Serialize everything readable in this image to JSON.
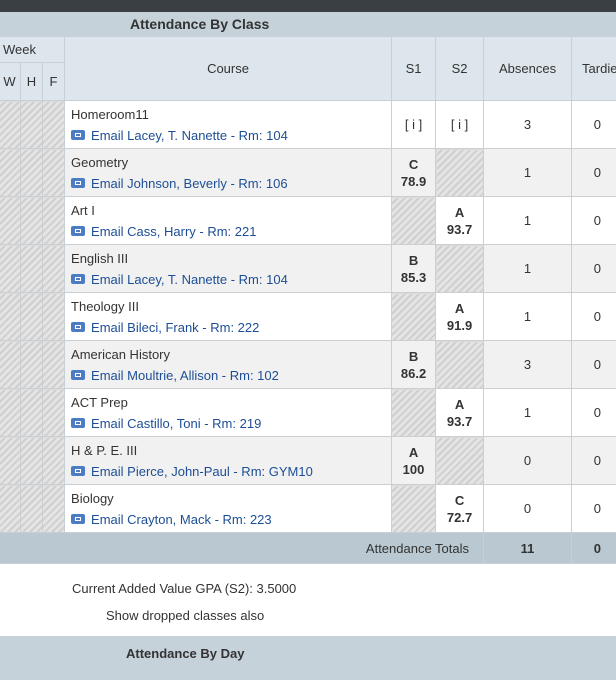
{
  "header": {
    "title": "Attendance By Class"
  },
  "table": {
    "columns": {
      "week": "Week",
      "days": [
        "W",
        "H",
        "F"
      ],
      "course": "Course",
      "s1": "S1",
      "s2": "S2",
      "absences": "Absences",
      "tardies": "Tardies"
    },
    "rows": [
      {
        "course": "Homeroom11",
        "teacher": "Email Lacey, T. Nanette - Rm: 104",
        "s1": "[ i ]",
        "s2": "[ i ]",
        "absences": 3,
        "tardies": 0
      },
      {
        "course": "Geometry",
        "teacher": "Email Johnson, Beverly - Rm: 106",
        "s1": {
          "letter": "C",
          "score": 78.9
        },
        "s2": null,
        "absences": 1,
        "tardies": 0
      },
      {
        "course": "Art I",
        "teacher": "Email Cass, Harry - Rm: 221",
        "s1": null,
        "s2": {
          "letter": "A",
          "score": 93.7
        },
        "absences": 1,
        "tardies": 0
      },
      {
        "course": "English III",
        "teacher": "Email Lacey, T. Nanette - Rm: 104",
        "s1": {
          "letter": "B",
          "score": 85.3
        },
        "s2": null,
        "absences": 1,
        "tardies": 0
      },
      {
        "course": "Theology III",
        "teacher": "Email Bileci, Frank - Rm: 222",
        "s1": null,
        "s2": {
          "letter": "A",
          "score": 91.9
        },
        "absences": 1,
        "tardies": 0
      },
      {
        "course": "American History",
        "teacher": "Email Moultrie, Allison - Rm: 102",
        "s1": {
          "letter": "B",
          "score": 86.2
        },
        "s2": null,
        "absences": 3,
        "tardies": 0
      },
      {
        "course": "ACT Prep",
        "teacher": "Email Castillo, Toni - Rm: 219",
        "s1": null,
        "s2": {
          "letter": "A",
          "score": 93.7
        },
        "absences": 1,
        "tardies": 0
      },
      {
        "course": "H & P. E. III",
        "teacher": "Email Pierce, John-Paul - Rm: GYM10",
        "s1": {
          "letter": "A",
          "score": 100
        },
        "s2": null,
        "absences": 0,
        "tardies": 0
      },
      {
        "course": "Biology",
        "teacher": "Email Crayton, Mack - Rm: 223",
        "s1": null,
        "s2": {
          "letter": "C",
          "score": 72.7
        },
        "absences": 0,
        "tardies": 0
      }
    ],
    "totals": {
      "label": "Attendance Totals",
      "absences": 11,
      "tardies": 0
    }
  },
  "gpa": "Current Added Value GPA (S2): 3.5000",
  "dropped_link": "Show dropped classes also",
  "footer": {
    "title": "Attendance By Day"
  }
}
